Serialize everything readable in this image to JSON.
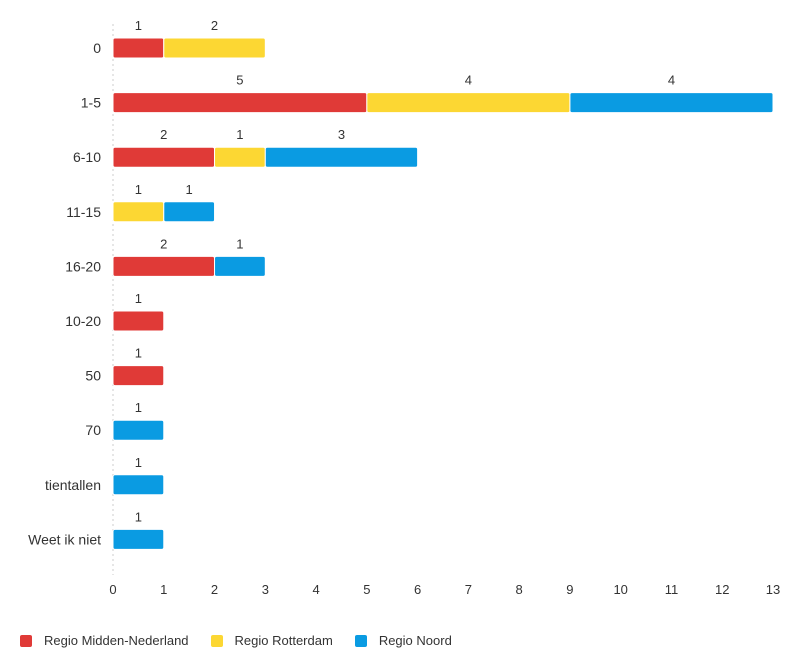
{
  "chart_data": {
    "type": "bar",
    "orientation": "horizontal",
    "stacked": true,
    "categories": [
      "0",
      "1-5",
      "6-10",
      "11-15",
      "16-20",
      "10-20",
      "50",
      "70",
      "tientallen",
      "Weet ik niet"
    ],
    "series": [
      {
        "name": "Regio Midden-Nederland",
        "color": "#e03a37",
        "values": [
          1,
          5,
          2,
          0,
          2,
          1,
          1,
          0,
          0,
          0
        ]
      },
      {
        "name": "Regio Rotterdam",
        "color": "#fcd733",
        "values": [
          2,
          4,
          1,
          1,
          0,
          0,
          0,
          0,
          0,
          0
        ]
      },
      {
        "name": "Regio Noord",
        "color": "#0a9be2",
        "values": [
          0,
          4,
          3,
          1,
          1,
          0,
          0,
          1,
          1,
          1
        ]
      }
    ],
    "xlim": [
      0,
      13
    ],
    "xticks": [
      "0",
      "1",
      "2",
      "3",
      "4",
      "5",
      "6",
      "7",
      "8",
      "9",
      "10",
      "11",
      "12",
      "13"
    ],
    "data_labels": true,
    "grid": false,
    "legend_position": "bottom-left"
  }
}
